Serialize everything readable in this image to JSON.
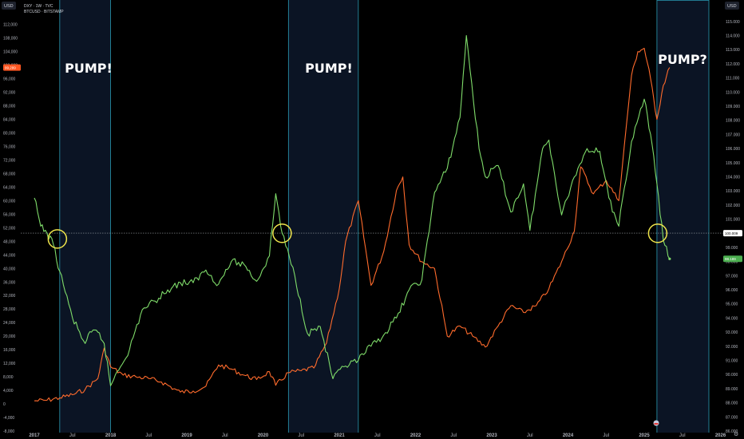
{
  "header": {
    "left_unit": "USD",
    "right_unit": "USD",
    "line1": "DXY · 1W · TVC",
    "line2": "BTCUSD · BITSTAMP"
  },
  "annotations": [
    "PUMP!",
    "PUMP!",
    "PUMP?"
  ],
  "badges": {
    "btc_price": "99,299",
    "dxy_price": "100.009",
    "dxy_last": "98.189"
  },
  "colors": {
    "btc": "#ff6b2c",
    "dxy": "#7fdc6a",
    "band_fill": "#0b1424",
    "band_line": "#2a9bb3",
    "circle": "#f0e64c",
    "dxy_badge": "#4caf50",
    "btc_badge": "#ff5722"
  },
  "chart_data": {
    "type": "line",
    "x_ticks": [
      "2017",
      "Jul",
      "2018",
      "Jul",
      "2019",
      "Jul",
      "2020",
      "Jul",
      "2021",
      "Jul",
      "2022",
      "Jul",
      "2023",
      "Jul",
      "2024",
      "Jul",
      "2025",
      "Jul",
      "2026"
    ],
    "left_axis_ticks": [
      "112,000",
      "108,000",
      "104,000",
      "100,000",
      "96,000",
      "92,000",
      "88,000",
      "84,000",
      "80,000",
      "76,000",
      "72,000",
      "68,000",
      "64,000",
      "60,000",
      "56,000",
      "52,000",
      "48,000",
      "44,000",
      "40,000",
      "36,000",
      "32,000",
      "28,000",
      "24,000",
      "20,000",
      "16,000",
      "12,000",
      "8,000",
      "4,000",
      "0",
      "-4,000",
      "-8,000"
    ],
    "right_axis_ticks": [
      "115.000",
      "114.000",
      "113.000",
      "112.000",
      "111.000",
      "110.000",
      "109.000",
      "108.000",
      "107.000",
      "106.000",
      "105.000",
      "104.000",
      "103.000",
      "102.000",
      "101.000",
      "100.000",
      "99.000",
      "98.000",
      "97.000",
      "96.000",
      "95.000",
      "94.000",
      "93.000",
      "92.000",
      "91.000",
      "90.000",
      "89.000",
      "88.000",
      "87.000",
      "86.000"
    ],
    "left_range": [
      -8000,
      115000
    ],
    "right_range": [
      86,
      115.5
    ],
    "reference_line": 100.009,
    "shaded_periods": [
      {
        "start": "2017-05",
        "end": "2018-01"
      },
      {
        "start": "2020-05",
        "end": "2021-04"
      },
      {
        "start": "2025-03",
        "end": "2025-12"
      }
    ],
    "series": [
      {
        "name": "BTCUSD",
        "axis": "left",
        "points": [
          [
            "2017-01",
            900
          ],
          [
            "2017-03",
            1100
          ],
          [
            "2017-05",
            1800
          ],
          [
            "2017-07",
            2700
          ],
          [
            "2017-09",
            4300
          ],
          [
            "2017-11",
            7500
          ],
          [
            "2017-12",
            16500
          ],
          [
            "2018-01",
            11000
          ],
          [
            "2018-03",
            8500
          ],
          [
            "2018-05",
            8000
          ],
          [
            "2018-07",
            7500
          ],
          [
            "2018-09",
            6500
          ],
          [
            "2018-11",
            4500
          ],
          [
            "2018-12",
            3500
          ],
          [
            "2019-02",
            3800
          ],
          [
            "2019-04",
            5200
          ],
          [
            "2019-06",
            11500
          ],
          [
            "2019-08",
            10300
          ],
          [
            "2019-10",
            8500
          ],
          [
            "2019-12",
            7200
          ],
          [
            "2020-02",
            9500
          ],
          [
            "2020-03",
            5500
          ],
          [
            "2020-05",
            9200
          ],
          [
            "2020-07",
            9800
          ],
          [
            "2020-09",
            10600
          ],
          [
            "2020-11",
            18000
          ],
          [
            "2021-01",
            34000
          ],
          [
            "2021-02",
            48000
          ],
          [
            "2021-04",
            60000
          ],
          [
            "2021-06",
            35000
          ],
          [
            "2021-08",
            45000
          ],
          [
            "2021-10",
            63000
          ],
          [
            "2021-11",
            67000
          ],
          [
            "2021-12",
            47000
          ],
          [
            "2022-02",
            42000
          ],
          [
            "2022-04",
            40000
          ],
          [
            "2022-06",
            20000
          ],
          [
            "2022-08",
            23000
          ],
          [
            "2022-10",
            20000
          ],
          [
            "2022-12",
            16800
          ],
          [
            "2023-02",
            23000
          ],
          [
            "2023-04",
            29000
          ],
          [
            "2023-06",
            27000
          ],
          [
            "2023-08",
            29000
          ],
          [
            "2023-10",
            34000
          ],
          [
            "2023-12",
            42000
          ],
          [
            "2024-02",
            51000
          ],
          [
            "2024-03",
            70000
          ],
          [
            "2024-05",
            62000
          ],
          [
            "2024-07",
            66000
          ],
          [
            "2024-09",
            60000
          ],
          [
            "2024-11",
            97000
          ],
          [
            "2024-12",
            104000
          ],
          [
            "2025-01",
            105000
          ],
          [
            "2025-02",
            96000
          ],
          [
            "2025-03",
            84000
          ],
          [
            "2025-04",
            94000
          ],
          [
            "2025-05",
            99299
          ]
        ]
      },
      {
        "name": "DXY",
        "axis": "right",
        "points": [
          [
            "2017-01",
            102.5
          ],
          [
            "2017-02",
            100.5
          ],
          [
            "2017-03",
            100.0
          ],
          [
            "2017-04",
            99.2
          ],
          [
            "2017-05",
            97.3
          ],
          [
            "2017-07",
            94.0
          ],
          [
            "2017-09",
            92.2
          ],
          [
            "2017-10",
            93.0
          ],
          [
            "2017-11",
            93.0
          ],
          [
            "2017-12",
            92.2
          ],
          [
            "2018-01",
            89.2
          ],
          [
            "2018-02",
            90.2
          ],
          [
            "2018-04",
            91.8
          ],
          [
            "2018-06",
            94.6
          ],
          [
            "2018-08",
            95.2
          ],
          [
            "2018-10",
            96.0
          ],
          [
            "2018-12",
            96.5
          ],
          [
            "2019-02",
            96.5
          ],
          [
            "2019-04",
            97.4
          ],
          [
            "2019-06",
            96.4
          ],
          [
            "2019-08",
            98.0
          ],
          [
            "2019-10",
            97.8
          ],
          [
            "2019-12",
            96.6
          ],
          [
            "2020-02",
            98.4
          ],
          [
            "2020-03",
            102.8
          ],
          [
            "2020-04",
            100.0
          ],
          [
            "2020-06",
            97.0
          ],
          [
            "2020-08",
            92.9
          ],
          [
            "2020-10",
            93.4
          ],
          [
            "2020-12",
            89.7
          ],
          [
            "2021-02",
            90.6
          ],
          [
            "2021-04",
            91.0
          ],
          [
            "2021-06",
            92.0
          ],
          [
            "2021-08",
            92.8
          ],
          [
            "2021-10",
            94.0
          ],
          [
            "2021-12",
            96.0
          ],
          [
            "2022-02",
            96.7
          ],
          [
            "2022-04",
            102.9
          ],
          [
            "2022-06",
            104.6
          ],
          [
            "2022-08",
            108.2
          ],
          [
            "2022-09",
            114.0
          ],
          [
            "2022-11",
            106.0
          ],
          [
            "2022-12",
            104.0
          ],
          [
            "2023-02",
            104.8
          ],
          [
            "2023-04",
            101.5
          ],
          [
            "2023-06",
            103.5
          ],
          [
            "2023-07",
            100.2
          ],
          [
            "2023-09",
            106.0
          ],
          [
            "2023-10",
            106.6
          ],
          [
            "2023-12",
            101.3
          ],
          [
            "2024-02",
            104.0
          ],
          [
            "2024-04",
            106.0
          ],
          [
            "2024-06",
            105.8
          ],
          [
            "2024-08",
            101.5
          ],
          [
            "2024-09",
            100.5
          ],
          [
            "2024-11",
            106.5
          ],
          [
            "2025-01",
            109.5
          ],
          [
            "2025-02",
            107.0
          ],
          [
            "2025-03",
            103.5
          ],
          [
            "2025-04",
            99.5
          ],
          [
            "2025-05",
            98.19
          ]
        ]
      }
    ]
  }
}
